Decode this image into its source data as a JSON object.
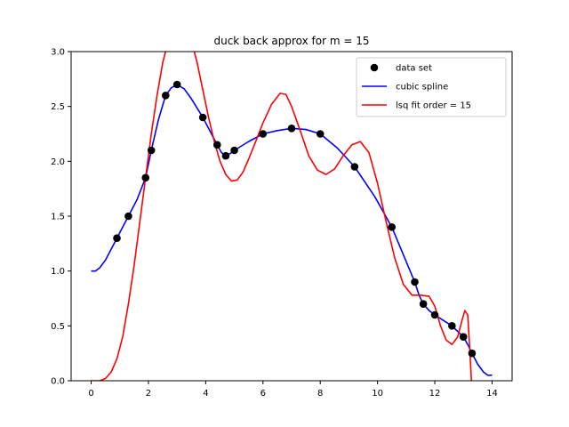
{
  "chart_data": {
    "type": "line",
    "title": "duck back approx for m = 15",
    "xlabel": "",
    "ylabel": "",
    "xlim": [
      -0.7,
      14.7
    ],
    "ylim": [
      0.0,
      3.0
    ],
    "xticks": [
      0,
      2,
      4,
      6,
      8,
      10,
      12,
      14
    ],
    "yticks": [
      0.0,
      0.5,
      1.0,
      1.5,
      2.0,
      2.5,
      3.0
    ],
    "xtick_labels": [
      "0",
      "2",
      "4",
      "6",
      "8",
      "10",
      "12",
      "14"
    ],
    "ytick_labels": [
      "0.0",
      "0.5",
      "1.0",
      "1.5",
      "2.0",
      "2.5",
      "3.0"
    ],
    "grid": false,
    "legend_position": "top-right",
    "series": [
      {
        "name": "data set",
        "kind": "scatter",
        "color": "#000000",
        "points": [
          [
            0.9,
            1.3
          ],
          [
            1.3,
            1.5
          ],
          [
            1.9,
            1.85
          ],
          [
            2.1,
            2.1
          ],
          [
            2.6,
            2.6
          ],
          [
            3.0,
            2.7
          ],
          [
            3.9,
            2.4
          ],
          [
            4.4,
            2.15
          ],
          [
            4.7,
            2.05
          ],
          [
            5.0,
            2.1
          ],
          [
            6.0,
            2.25
          ],
          [
            7.0,
            2.3
          ],
          [
            8.0,
            2.25
          ],
          [
            9.2,
            1.95
          ],
          [
            10.5,
            1.4
          ],
          [
            11.3,
            0.9
          ],
          [
            11.6,
            0.7
          ],
          [
            12.0,
            0.6
          ],
          [
            12.6,
            0.5
          ],
          [
            13.0,
            0.4
          ],
          [
            13.3,
            0.25
          ]
        ]
      },
      {
        "name": "cubic spline",
        "kind": "line",
        "color": "#0000ff",
        "points": [
          [
            0.0,
            1.0
          ],
          [
            0.15,
            1.0
          ],
          [
            0.3,
            1.03
          ],
          [
            0.5,
            1.1
          ],
          [
            0.7,
            1.2
          ],
          [
            0.9,
            1.3
          ],
          [
            1.1,
            1.4
          ],
          [
            1.3,
            1.5
          ],
          [
            1.6,
            1.65
          ],
          [
            1.9,
            1.85
          ],
          [
            2.1,
            2.1
          ],
          [
            2.35,
            2.38
          ],
          [
            2.6,
            2.6
          ],
          [
            2.8,
            2.67
          ],
          [
            3.0,
            2.7
          ],
          [
            3.25,
            2.66
          ],
          [
            3.5,
            2.57
          ],
          [
            3.9,
            2.4
          ],
          [
            4.2,
            2.25
          ],
          [
            4.4,
            2.15
          ],
          [
            4.55,
            2.08
          ],
          [
            4.7,
            2.05
          ],
          [
            4.85,
            2.07
          ],
          [
            5.0,
            2.1
          ],
          [
            5.5,
            2.18
          ],
          [
            6.0,
            2.25
          ],
          [
            6.5,
            2.28
          ],
          [
            7.0,
            2.3
          ],
          [
            7.5,
            2.29
          ],
          [
            8.0,
            2.25
          ],
          [
            8.6,
            2.12
          ],
          [
            9.2,
            1.95
          ],
          [
            9.9,
            1.68
          ],
          [
            10.5,
            1.4
          ],
          [
            10.9,
            1.15
          ],
          [
            11.3,
            0.9
          ],
          [
            11.45,
            0.78
          ],
          [
            11.6,
            0.7
          ],
          [
            11.8,
            0.64
          ],
          [
            12.0,
            0.6
          ],
          [
            12.3,
            0.55
          ],
          [
            12.6,
            0.5
          ],
          [
            12.8,
            0.45
          ],
          [
            13.0,
            0.4
          ],
          [
            13.15,
            0.33
          ],
          [
            13.3,
            0.25
          ],
          [
            13.5,
            0.15
          ],
          [
            13.7,
            0.08
          ],
          [
            13.85,
            0.05
          ],
          [
            14.0,
            0.05
          ]
        ]
      },
      {
        "name": "lsq fit order = 15",
        "kind": "line",
        "color": "#ff0000",
        "points": [
          [
            0.0,
            0.0
          ],
          [
            0.3,
            0.0
          ],
          [
            0.5,
            0.02
          ],
          [
            0.7,
            0.08
          ],
          [
            0.9,
            0.2
          ],
          [
            1.1,
            0.4
          ],
          [
            1.3,
            0.7
          ],
          [
            1.5,
            1.05
          ],
          [
            1.7,
            1.45
          ],
          [
            1.9,
            1.85
          ],
          [
            2.1,
            2.25
          ],
          [
            2.3,
            2.6
          ],
          [
            2.5,
            2.9
          ],
          [
            2.7,
            3.1
          ],
          [
            2.9,
            3.25
          ],
          [
            3.1,
            3.3
          ],
          [
            3.3,
            3.25
          ],
          [
            3.5,
            3.1
          ],
          [
            3.7,
            2.9
          ],
          [
            3.9,
            2.65
          ],
          [
            4.1,
            2.4
          ],
          [
            4.3,
            2.18
          ],
          [
            4.5,
            2.0
          ],
          [
            4.7,
            1.88
          ],
          [
            4.9,
            1.82
          ],
          [
            5.1,
            1.83
          ],
          [
            5.3,
            1.9
          ],
          [
            5.5,
            2.02
          ],
          [
            5.7,
            2.15
          ],
          [
            6.0,
            2.35
          ],
          [
            6.3,
            2.52
          ],
          [
            6.6,
            2.62
          ],
          [
            6.8,
            2.61
          ],
          [
            7.0,
            2.5
          ],
          [
            7.3,
            2.28
          ],
          [
            7.6,
            2.05
          ],
          [
            7.9,
            1.92
          ],
          [
            8.2,
            1.88
          ],
          [
            8.5,
            1.93
          ],
          [
            8.8,
            2.05
          ],
          [
            9.1,
            2.15
          ],
          [
            9.4,
            2.18
          ],
          [
            9.7,
            2.08
          ],
          [
            10.0,
            1.8
          ],
          [
            10.3,
            1.45
          ],
          [
            10.6,
            1.12
          ],
          [
            10.9,
            0.88
          ],
          [
            11.2,
            0.78
          ],
          [
            11.5,
            0.78
          ],
          [
            11.8,
            0.77
          ],
          [
            12.0,
            0.68
          ],
          [
            12.2,
            0.5
          ],
          [
            12.4,
            0.37
          ],
          [
            12.6,
            0.33
          ],
          [
            12.8,
            0.4
          ],
          [
            12.95,
            0.55
          ],
          [
            13.05,
            0.64
          ],
          [
            13.15,
            0.6
          ],
          [
            13.22,
            0.3
          ],
          [
            13.3,
            -0.1
          ]
        ]
      }
    ]
  }
}
